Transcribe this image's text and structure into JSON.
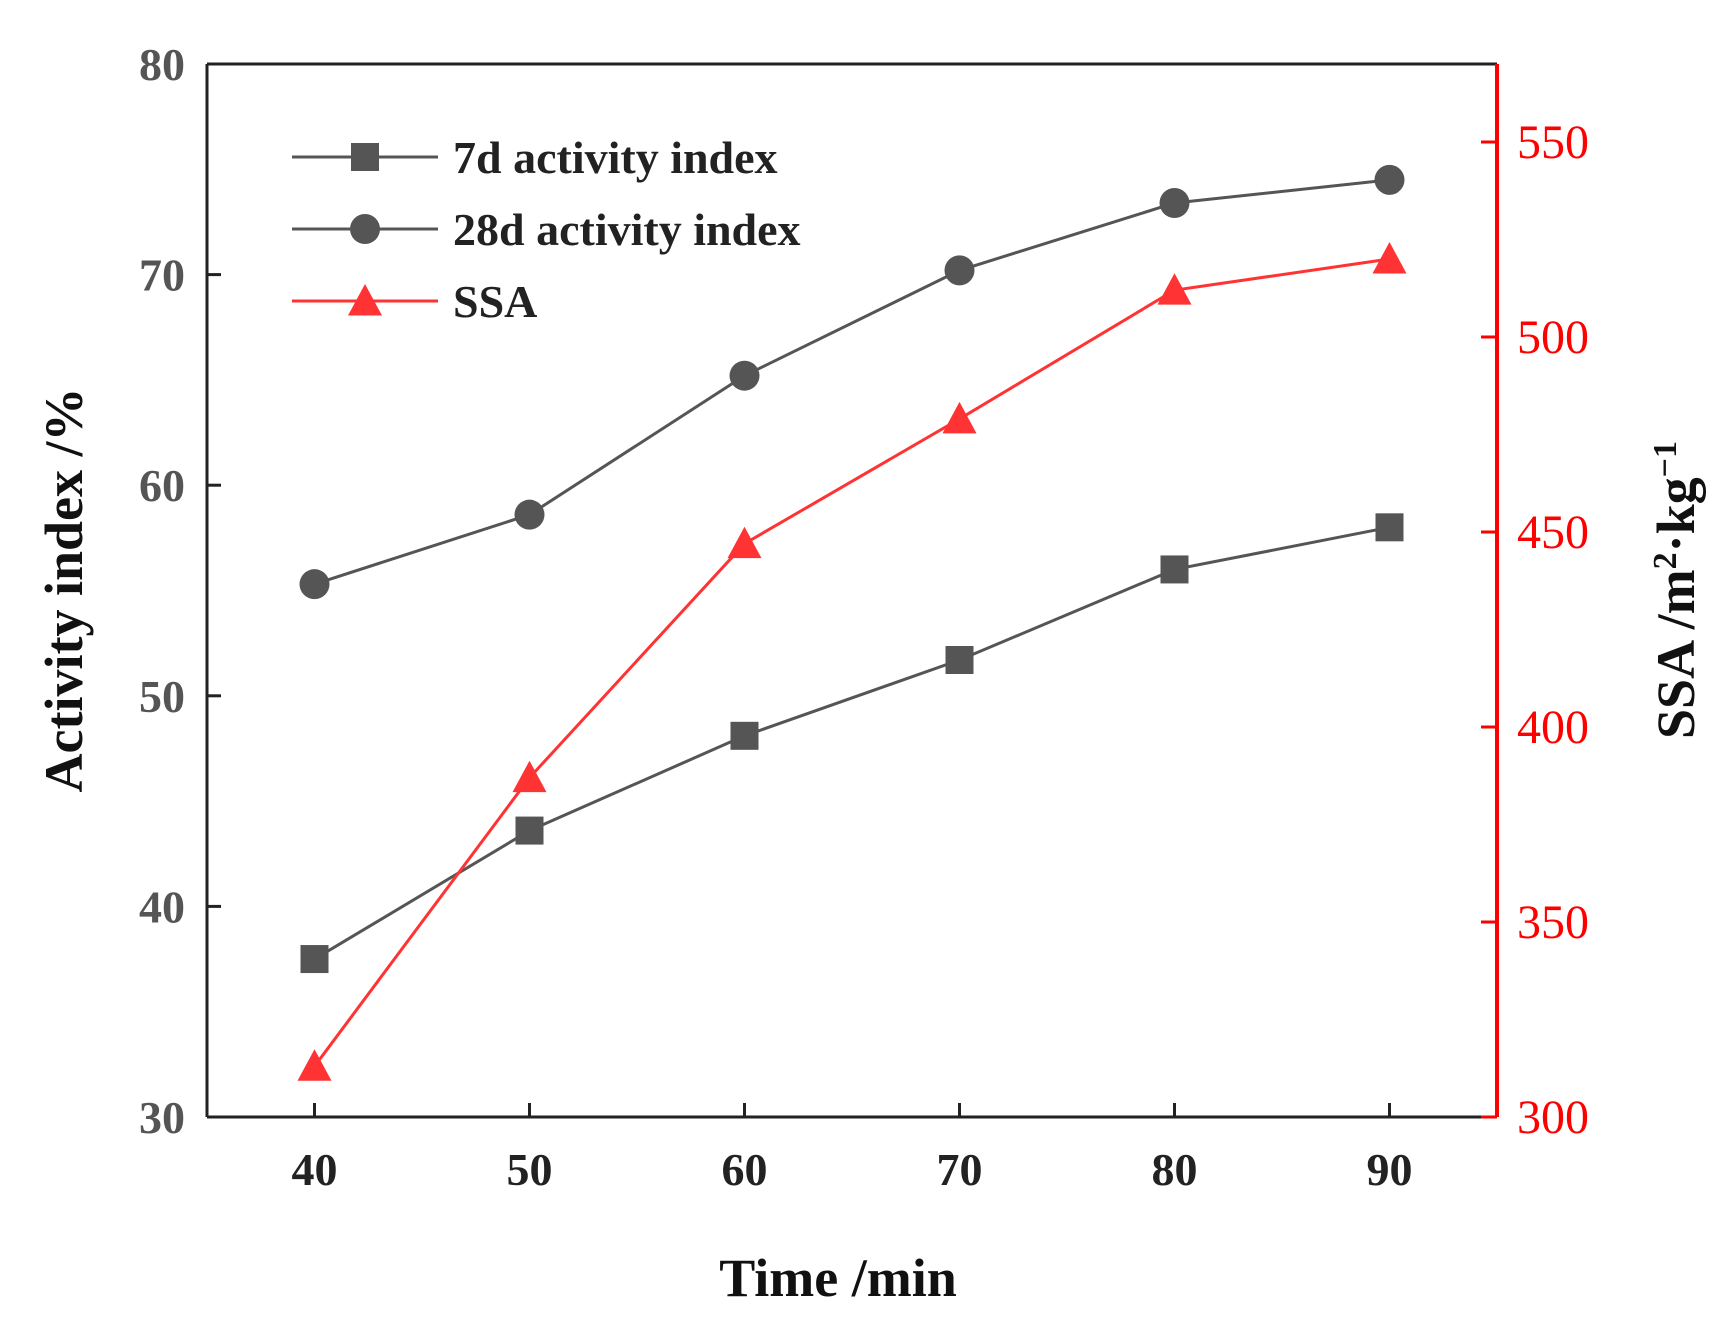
{
  "chart_data": {
    "type": "line",
    "x": [
      40,
      50,
      60,
      70,
      80,
      90
    ],
    "xlabel": "Time /min",
    "xticks": [
      "40",
      "50",
      "60",
      "70",
      "80",
      "90"
    ],
    "xlim": [
      35,
      95
    ],
    "ylabel": "Activity index /%",
    "ylim": [
      30,
      80
    ],
    "yticks": [
      "30",
      "40",
      "50",
      "60",
      "70",
      "80"
    ],
    "y2label": {
      "prefix": "SSA /m",
      "sup1": "2",
      "mid": "·kg",
      "sup2": "−1"
    },
    "y2lim": [
      300,
      570
    ],
    "y2ticks": [
      "300",
      "350",
      "400",
      "450",
      "500",
      "550"
    ],
    "legend_position": "top-left",
    "series": [
      {
        "name": "7d activity index",
        "axis": "left",
        "marker": "square",
        "color": "#555555",
        "values": [
          37.5,
          43.6,
          48.1,
          51.7,
          56.0,
          58.0
        ]
      },
      {
        "name": "28d activity index",
        "axis": "left",
        "marker": "circle",
        "color": "#555555",
        "values": [
          55.3,
          58.6,
          65.2,
          70.2,
          73.4,
          74.5
        ]
      },
      {
        "name": "SSA",
        "axis": "right",
        "marker": "triangle",
        "color": "#ff3333",
        "values": [
          313,
          387,
          447,
          479,
          512,
          520
        ]
      }
    ]
  }
}
